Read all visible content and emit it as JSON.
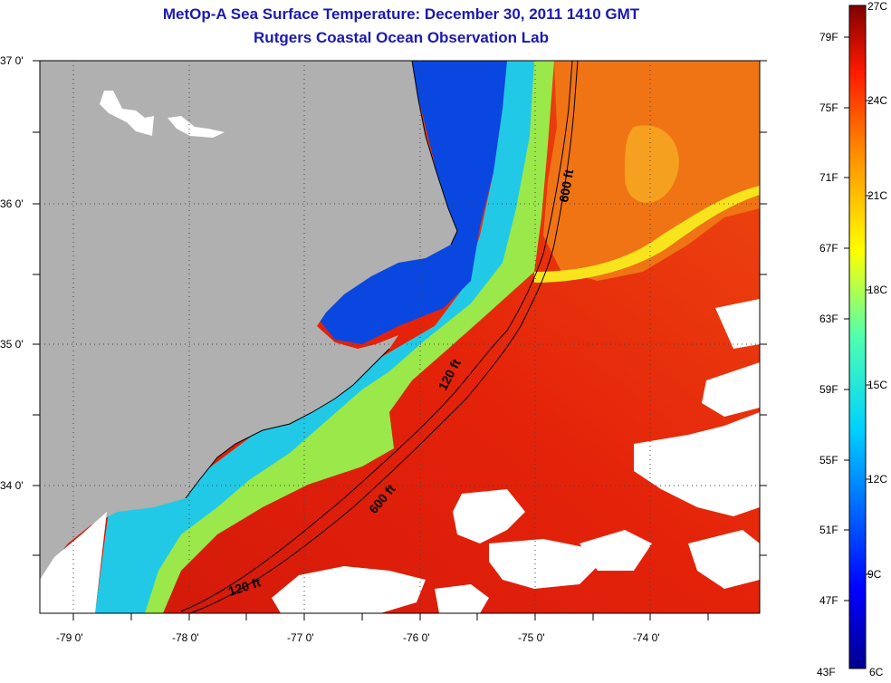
{
  "header": {
    "title": "MetOp-A Sea Surface Temperature:  December 30, 2011 1410 GMT",
    "subtitle": "Rutgers Coastal Ocean Observation Lab"
  },
  "map": {
    "lat_labels": [
      "37 0'",
      "36 0'",
      "35 0'",
      "34 0'"
    ],
    "lon_labels": [
      "-79 0'",
      "-78 0'",
      "-77 0'",
      "-76 0'",
      "-75 0'",
      "-74 0'"
    ],
    "contour_labels": {
      "shelf_north": "600 ft",
      "shelf_mid": "120 ft",
      "shelf_south": "600 ft",
      "shelf_coast": "120 ft"
    },
    "colors": {
      "land": "#b0b0b0",
      "cloud": "#ffffff",
      "cold": "#0a47e0",
      "cool": "#22c9e6",
      "mild": "#f5ee1a",
      "warm": "#f08a16",
      "hot": "#e4220a"
    }
  },
  "colorbar": {
    "celsius_labels": [
      "27C",
      "24C",
      "21C",
      "18C",
      "15C",
      "12C",
      "9C",
      "6C"
    ],
    "fahrenheit_labels": [
      "79F",
      "75F",
      "71F",
      "67F",
      "63F",
      "59F",
      "55F",
      "51F",
      "47F",
      "43F"
    ],
    "range_c": [
      6,
      27
    ],
    "range_f": [
      43,
      79
    ]
  }
}
